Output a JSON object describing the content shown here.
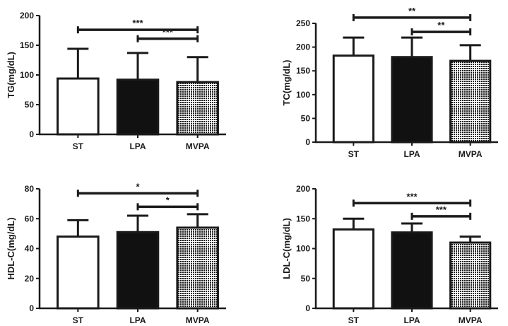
{
  "colors": {
    "axis": "#1a1a1a",
    "bar_st": "#ffffff",
    "bar_lpa": "#111111",
    "bar_mvpa_dot": "#1a1a1a",
    "bar_mvpa_bg": "#ffffff"
  },
  "chart_data": [
    {
      "type": "bar",
      "id": "tg",
      "ylabel": "TG(mg/dL)",
      "categories": [
        "ST",
        "LPA",
        "MVPA"
      ],
      "values": [
        94,
        92,
        88
      ],
      "errors": [
        50,
        45,
        42
      ],
      "fills": [
        "white",
        "black",
        "dotted"
      ],
      "ylim": [
        0,
        200
      ],
      "yticks": [
        0,
        50,
        100,
        150,
        200
      ],
      "significance": [
        {
          "from": 0,
          "to": 2,
          "y": 176,
          "label": "***"
        },
        {
          "from": 1,
          "to": 2,
          "y": 161,
          "label": "***"
        }
      ]
    },
    {
      "type": "bar",
      "id": "tc",
      "ylabel": "TC(mg/dL)",
      "categories": [
        "ST",
        "LPA",
        "MVPA"
      ],
      "values": [
        182,
        179,
        171
      ],
      "errors": [
        38,
        41,
        33
      ],
      "fills": [
        "white",
        "black",
        "dotted"
      ],
      "ylim": [
        0,
        250
      ],
      "yticks": [
        0,
        50,
        100,
        150,
        200,
        250
      ],
      "significance": [
        {
          "from": 0,
          "to": 2,
          "y": 262,
          "label": "**"
        },
        {
          "from": 1,
          "to": 2,
          "y": 232,
          "label": "**"
        }
      ]
    },
    {
      "type": "bar",
      "id": "hdl",
      "ylabel": "HDL-C(mg/dL)",
      "categories": [
        "ST",
        "LPA",
        "MVPA"
      ],
      "values": [
        48,
        51,
        54
      ],
      "errors": [
        11,
        11,
        9
      ],
      "fills": [
        "white",
        "black",
        "dotted"
      ],
      "ylim": [
        0,
        80
      ],
      "yticks": [
        0,
        20,
        40,
        60,
        80
      ],
      "significance": [
        {
          "from": 0,
          "to": 2,
          "y": 77,
          "label": "*"
        },
        {
          "from": 1,
          "to": 2,
          "y": 68,
          "label": "*"
        }
      ]
    },
    {
      "type": "bar",
      "id": "ldl",
      "ylabel": "LDL-C(mg/dL)",
      "categories": [
        "ST",
        "LPA",
        "MVPA"
      ],
      "values": [
        132,
        127,
        110
      ],
      "errors": [
        18,
        15,
        10
      ],
      "fills": [
        "white",
        "black",
        "dotted"
      ],
      "ylim": [
        0,
        200
      ],
      "yticks": [
        0,
        50,
        100,
        150,
        200
      ],
      "significance": [
        {
          "from": 0,
          "to": 2,
          "y": 176,
          "label": "***"
        },
        {
          "from": 1,
          "to": 2,
          "y": 154,
          "label": "***"
        }
      ]
    }
  ]
}
